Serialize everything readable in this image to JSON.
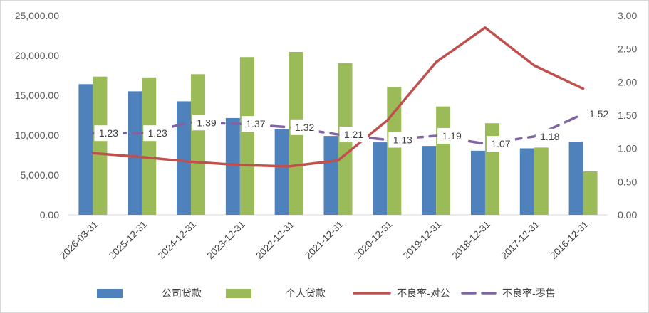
{
  "chart_data": {
    "type": "bar",
    "title": "",
    "categories": [
      "2026-03-31",
      "2025-12-31",
      "2024-12-31",
      "2023-12-31",
      "2022-12-31",
      "2021-12-31",
      "2020-12-31",
      "2019-12-31",
      "2018-12-31",
      "2017-12-31",
      "2016-12-31"
    ],
    "series": [
      {
        "name": "公司贷款",
        "type": "bar",
        "axis": "left",
        "color": "#4f81bd",
        "values": [
          16400,
          15500,
          14250,
          12150,
          10750,
          9900,
          9100,
          8650,
          8050,
          8350,
          9150
        ]
      },
      {
        "name": "个人贷款",
        "type": "bar",
        "axis": "left",
        "color": "#9bbb59",
        "values": [
          17350,
          17250,
          17650,
          19800,
          20450,
          19050,
          16050,
          13600,
          11500,
          8450,
          5450
        ]
      },
      {
        "name": "不良率-对公",
        "type": "line",
        "axis": "right",
        "color": "#c0504d",
        "values": [
          0.93,
          0.87,
          0.8,
          0.75,
          0.73,
          0.82,
          1.42,
          2.3,
          2.82,
          2.25,
          1.9
        ]
      },
      {
        "name": "不良率-零售",
        "type": "line",
        "axis": "right",
        "color": "#8064a2",
        "values": [
          1.23,
          1.23,
          1.39,
          1.37,
          1.32,
          1.21,
          1.13,
          1.19,
          1.07,
          1.18,
          1.52
        ],
        "labels": [
          "1.23",
          "1.23",
          "1.39",
          "1.37",
          "1.32",
          "1.21",
          "1.13",
          "1.19",
          "1.07",
          "1.18",
          "1.52"
        ]
      }
    ],
    "y_left": {
      "min": 0,
      "max": 25000,
      "ticks": [
        "0.00",
        "5,000.00",
        "10,000.00",
        "15,000.00",
        "20,000.00",
        "25,000.00"
      ]
    },
    "y_right": {
      "min": 0,
      "max": 3,
      "ticks": [
        "0.00",
        "0.50",
        "1.00",
        "1.50",
        "2.00",
        "2.50",
        "3.00"
      ]
    },
    "grid": false,
    "legend_position": "bottom"
  }
}
